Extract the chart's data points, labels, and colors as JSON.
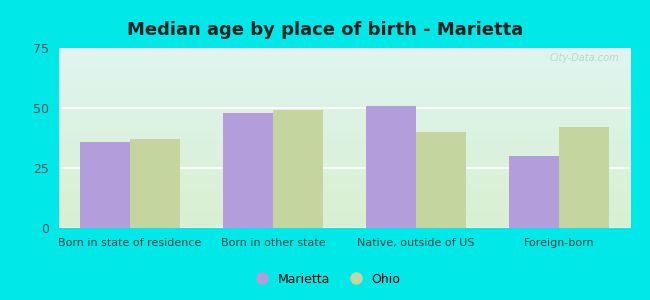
{
  "title": "Median age by place of birth - Marietta",
  "categories": [
    "Born in state of residence",
    "Born in other state",
    "Native, outside of US",
    "Foreign-born"
  ],
  "marietta_values": [
    36,
    48,
    51,
    30
  ],
  "ohio_values": [
    37,
    49,
    40,
    42
  ],
  "marietta_color": "#b39ddb",
  "ohio_color": "#c5d5a0",
  "ylim": [
    0,
    75
  ],
  "yticks": [
    0,
    25,
    50,
    75
  ],
  "bar_width": 0.35,
  "legend_labels": [
    "Marietta",
    "Ohio"
  ],
  "background_top": "#dff4f0",
  "background_bottom": "#d8efd0",
  "outer_color": "#00e8e8",
  "title_fontsize": 13,
  "label_fontsize": 8,
  "tick_fontsize": 9,
  "watermark_text": "City-Data.com",
  "watermark_color": "#bbcccc"
}
